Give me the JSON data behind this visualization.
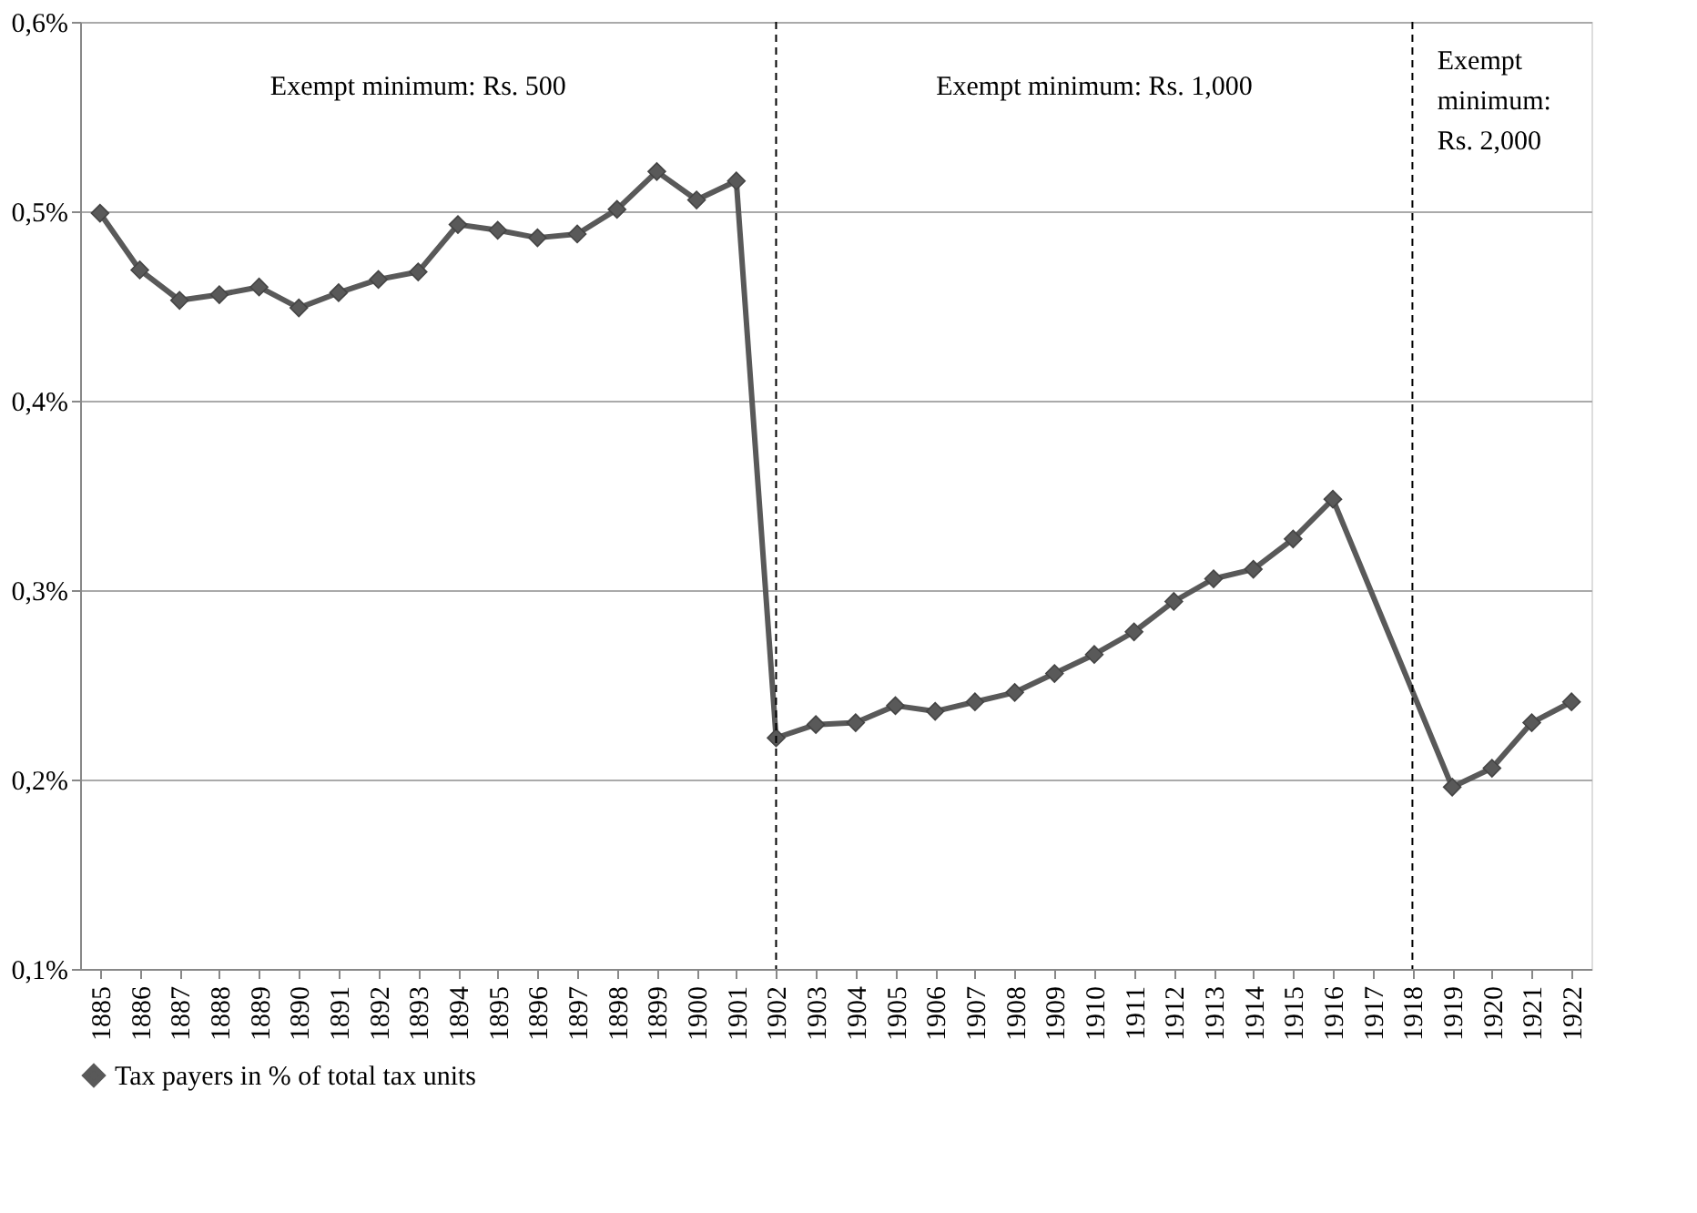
{
  "chart_data": {
    "type": "line",
    "categories": [
      "1885",
      "1886",
      "1887",
      "1888",
      "1889",
      "1890",
      "1891",
      "1892",
      "1893",
      "1894",
      "1895",
      "1896",
      "1897",
      "1898",
      "1899",
      "1900",
      "1901",
      "1902",
      "1903",
      "1904",
      "1905",
      "1906",
      "1907",
      "1908",
      "1909",
      "1910",
      "1911",
      "1912",
      "1913",
      "1914",
      "1915",
      "1916",
      "1917",
      "1918",
      "1919",
      "1920",
      "1921",
      "1922"
    ],
    "series": [
      {
        "name": "Tax payers in % of total tax units",
        "color": "#595959",
        "values": [
          0.499,
          0.469,
          0.453,
          0.456,
          0.46,
          0.449,
          0.457,
          0.464,
          0.468,
          0.493,
          0.49,
          0.486,
          0.488,
          0.501,
          0.521,
          0.506,
          0.516,
          0.222,
          0.229,
          0.23,
          0.239,
          0.236,
          0.241,
          0.246,
          0.256,
          0.266,
          0.278,
          0.294,
          0.306,
          0.311,
          0.327,
          0.348,
          null,
          null,
          0.196,
          0.206,
          0.23,
          0.241
        ]
      }
    ],
    "ylim": [
      0.1,
      0.6
    ],
    "yticks": [
      {
        "value": 0.1,
        "label": "0,1%"
      },
      {
        "value": 0.2,
        "label": "0,2%"
      },
      {
        "value": 0.3,
        "label": "0,3%"
      },
      {
        "value": 0.4,
        "label": "0,4%"
      },
      {
        "value": 0.5,
        "label": "0,5%"
      },
      {
        "value": 0.6,
        "label": "0,6%"
      }
    ],
    "ref_lines": [
      {
        "axis": "x",
        "value": "1902",
        "color": "#000000",
        "line_style": "dashed"
      },
      {
        "axis": "x",
        "value": "1918",
        "color": "#000000",
        "line_style": "dashed"
      }
    ],
    "annotations": [
      "Exempt minimum: Rs. 500",
      "Exempt minimum: Rs. 1,000",
      "Exempt minimum: Rs. 2,000"
    ],
    "grid": "y",
    "legend": "bottom",
    "marker": "diamond",
    "line_style": "solid"
  }
}
